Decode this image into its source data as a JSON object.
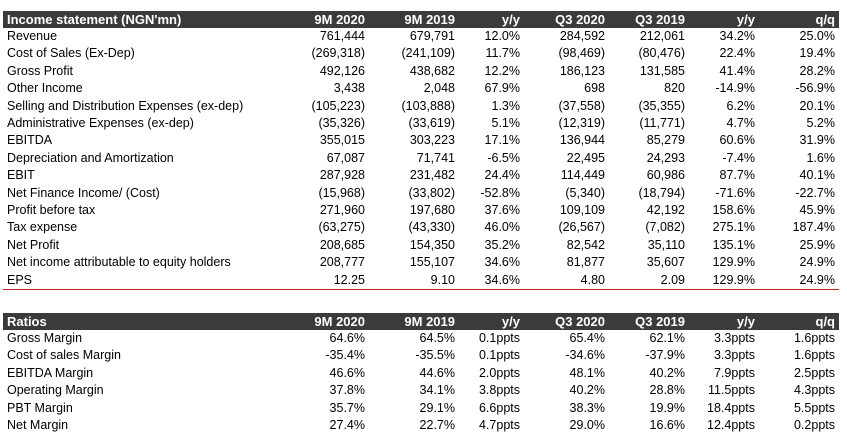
{
  "income_statement": {
    "header": [
      "Income statement (NGN'mn)",
      "9M 2020",
      "9M 2019",
      "y/y",
      "Q3 2020",
      "Q3 2019",
      "y/y",
      "q/q"
    ],
    "rows": [
      [
        "Revenue",
        "761,444",
        "679,791",
        "12.0%",
        "284,592",
        "212,061",
        "34.2%",
        "25.0%"
      ],
      [
        "Cost of Sales (Ex-Dep)",
        "(269,318)",
        "(241,109)",
        "11.7%",
        "(98,469)",
        "(80,476)",
        "22.4%",
        "19.4%"
      ],
      [
        "Gross Profit",
        "492,126",
        "438,682",
        "12.2%",
        "186,123",
        "131,585",
        "41.4%",
        "28.2%"
      ],
      [
        "Other Income",
        "3,438",
        "2,048",
        "67.9%",
        "698",
        "820",
        "-14.9%",
        "-56.9%"
      ],
      [
        "Selling and Distribution Expenses (ex-dep)",
        "(105,223)",
        "(103,888)",
        "1.3%",
        "(37,558)",
        "(35,355)",
        "6.2%",
        "20.1%"
      ],
      [
        "Administrative Expenses (ex-dep)",
        "(35,326)",
        "(33,619)",
        "5.1%",
        "(12,319)",
        "(11,771)",
        "4.7%",
        "5.2%"
      ],
      [
        "EBITDA",
        "355,015",
        "303,223",
        "17.1%",
        "136,944",
        "85,279",
        "60.6%",
        "31.9%"
      ],
      [
        "Depreciation and Amortization",
        "67,087",
        "71,741",
        "-6.5%",
        "22,495",
        "24,293",
        "-7.4%",
        "1.6%"
      ],
      [
        "EBIT",
        "287,928",
        "231,482",
        "24.4%",
        "114,449",
        "60,986",
        "87.7%",
        "40.1%"
      ],
      [
        "Net Finance Income/ (Cost)",
        "(15,968)",
        "(33,802)",
        "-52.8%",
        "(5,340)",
        "(18,794)",
        "-71.6%",
        "-22.7%"
      ],
      [
        "Profit before tax",
        "271,960",
        "197,680",
        "37.6%",
        "109,109",
        "42,192",
        "158.6%",
        "45.9%"
      ],
      [
        "Tax expense",
        "(63,275)",
        "(43,330)",
        "46.0%",
        "(26,567)",
        "(7,082)",
        "275.1%",
        "187.4%"
      ],
      [
        "Net Profit",
        "208,685",
        "154,350",
        "35.2%",
        "82,542",
        "35,110",
        "135.1%",
        "25.9%"
      ],
      [
        "Net income attributable to equity holders",
        "208,777",
        "155,107",
        "34.6%",
        "81,877",
        "35,607",
        "129.9%",
        "24.9%"
      ],
      [
        "EPS",
        "12.25",
        "9.10",
        "34.6%",
        "4.80",
        "2.09",
        "129.9%",
        "24.9%"
      ]
    ]
  },
  "ratios": {
    "header": [
      "Ratios",
      "9M 2020",
      "9M 2019",
      "y/y",
      "Q3 2020",
      "Q3 2019",
      "y/y",
      "q/q"
    ],
    "rows": [
      [
        "Gross Margin",
        "64.6%",
        "64.5%",
        "0.1ppts",
        "65.4%",
        "62.1%",
        "3.3ppts",
        "1.6ppts"
      ],
      [
        "Cost of sales Margin",
        "-35.4%",
        "-35.5%",
        "0.1ppts",
        "-34.6%",
        "-37.9%",
        "3.3ppts",
        "1.6ppts"
      ],
      [
        "EBITDA Margin",
        "46.6%",
        "44.6%",
        "2.0ppts",
        "48.1%",
        "40.2%",
        "7.9ppts",
        "2.5ppts"
      ],
      [
        "Operating Margin",
        "37.8%",
        "34.1%",
        "3.8ppts",
        "40.2%",
        "28.8%",
        "11.5ppts",
        "4.3ppts"
      ],
      [
        "PBT Margin",
        "35.7%",
        "29.1%",
        "6.6ppts",
        "38.3%",
        "19.9%",
        "18.4ppts",
        "5.5ppts"
      ],
      [
        "Net Margin",
        "27.4%",
        "22.7%",
        "4.7ppts",
        "29.0%",
        "16.6%",
        "12.4ppts",
        "0.2ppts"
      ]
    ]
  },
  "colors": {
    "header_bg": "#3b3b3b",
    "header_text": "#ffffff",
    "eps_rule": "#c0282d"
  }
}
